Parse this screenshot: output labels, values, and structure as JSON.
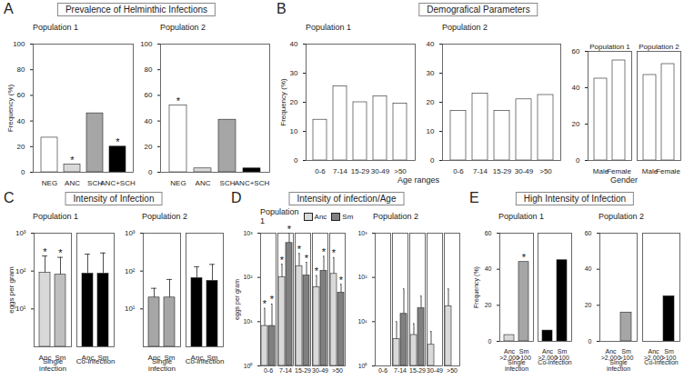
{
  "chart_data": [
    {
      "panel": "A",
      "title": "Prevalence of Helminthic Infections",
      "charts": [
        {
          "type": "bar",
          "subtitle": "Population 1",
          "ylabel": "Frequency (%)",
          "categories": [
            "NEG",
            "ANC",
            "SCH",
            "ANC+SCH"
          ],
          "values": [
            27,
            6,
            46,
            20
          ],
          "colors": [
            "#ffffff",
            "#d9d9d9",
            "#a6a6a6",
            "#000000"
          ],
          "significance": [
            null,
            "*",
            null,
            "*"
          ],
          "ylim": [
            0,
            100
          ],
          "yticks": [
            0,
            20,
            40,
            60,
            80,
            100
          ]
        },
        {
          "type": "bar",
          "subtitle": "Population 2",
          "categories": [
            "NEG",
            "ANC",
            "SCH",
            "ANC+SCH"
          ],
          "values": [
            52,
            3,
            41,
            3
          ],
          "colors": [
            "#ffffff",
            "#d9d9d9",
            "#a6a6a6",
            "#000000"
          ],
          "significance": [
            "*",
            null,
            null,
            null
          ],
          "ylim": [
            0,
            100
          ],
          "yticks": [
            0,
            20,
            40,
            60,
            80,
            100
          ]
        }
      ]
    },
    {
      "panel": "B",
      "title": "Demografical Parameters",
      "xlabel": "Age ranges",
      "charts": [
        {
          "type": "bar",
          "subtitle": "Population 1",
          "ylabel": "Frequency (%)",
          "categories": [
            "0-6",
            "7-14",
            "15-29",
            "30-49",
            ">50"
          ],
          "values": [
            14,
            25.5,
            20,
            22,
            19.5
          ],
          "color": "#ffffff",
          "ylim": [
            0,
            40
          ],
          "yticks": [
            0,
            10,
            20,
            30,
            40
          ]
        },
        {
          "type": "bar",
          "subtitle": "Population 2",
          "categories": [
            "0-6",
            "7-14",
            "15-29",
            "30-49",
            ">50"
          ],
          "values": [
            17,
            23,
            17,
            21,
            22.5
          ],
          "color": "#ffffff",
          "ylim": [
            0,
            40
          ],
          "yticks": [
            0,
            10,
            20,
            30,
            40
          ]
        },
        {
          "type": "bar",
          "xlabel": "Gender",
          "categories": [
            "Male",
            "Female",
            "Male",
            "Female"
          ],
          "groups": [
            "Population 1",
            "Population 1",
            "Population 2",
            "Population 2"
          ],
          "values": [
            45,
            55,
            47,
            53
          ],
          "color": "#ffffff",
          "ylim": [
            0,
            60
          ],
          "yticks": [
            0,
            20,
            40,
            60
          ]
        }
      ]
    },
    {
      "panel": "C",
      "title": "Intensity of Infection",
      "charts": [
        {
          "type": "bar",
          "log": "y",
          "subtitle": "Population 1",
          "ylabel": "eggs per gram",
          "categories": [
            "Anc",
            "Sm",
            "Anc",
            "Sm"
          ],
          "groups": [
            "Single infection",
            "Single infection",
            "Co-infection",
            "Co-infection"
          ],
          "values": [
            90,
            80,
            85,
            85
          ],
          "error_top": [
            250,
            230,
            280,
            300
          ],
          "colors": [
            "#d9d9d9",
            "#bfbfbf",
            "#000000",
            "#000000"
          ],
          "significance": [
            "*",
            "*",
            null,
            null
          ],
          "ylim": [
            1,
            1000
          ],
          "yticks": [
            {
              "value": 10,
              "label": "10¹"
            },
            {
              "value": 100,
              "label": "10²"
            },
            {
              "value": 1000,
              "label": "10³"
            }
          ]
        },
        {
          "type": "bar",
          "log": "y",
          "subtitle": "Population 2",
          "categories": [
            "Anc",
            "Sm",
            "Anc",
            "Sm"
          ],
          "groups": [
            "Single infection",
            "Single infection",
            "Co-infection",
            "Co-infection"
          ],
          "values": [
            20,
            20,
            65,
            55
          ],
          "error_top": [
            35,
            60,
            130,
            150
          ],
          "colors": [
            "#a6a6a6",
            "#a6a6a6",
            "#000000",
            "#000000"
          ],
          "ylim": [
            1,
            1000
          ],
          "yticks": [
            {
              "value": 10,
              "label": "10¹"
            },
            {
              "value": 100,
              "label": "10²"
            },
            {
              "value": 1000,
              "label": "10³"
            }
          ]
        }
      ]
    },
    {
      "panel": "D",
      "title": "Intensity of infection/Age",
      "charts": [
        {
          "type": "bar",
          "log": "y",
          "subtitle": "Population 1",
          "ylabel": "eggs per gram",
          "legend": "top-right",
          "categories": [
            "0-6",
            "7-14",
            "15-29",
            "30-49",
            ">50"
          ],
          "series": [
            {
              "name": "Anc",
              "color": "#d9d9d9",
              "values": [
                8,
                100,
                180,
                60,
                120
              ],
              "error_top": [
                20,
                200,
                350,
                110,
                280
              ],
              "significance": [
                "*",
                "*",
                "*",
                "*",
                "*"
              ]
            },
            {
              "name": "Sm",
              "color": "#808080",
              "values": [
                8,
                600,
                110,
                140,
                45
              ],
              "error_top": [
                25,
                1000,
                220,
                300,
                70
              ],
              "significance": [
                "*",
                "*",
                "*",
                "*",
                "*"
              ]
            }
          ],
          "ylim": [
            1,
            1000
          ],
          "yticks": [
            {
              "value": 1,
              "label": "10⁰"
            },
            {
              "value": 10,
              "label": "10¹"
            },
            {
              "value": 100,
              "label": "10²"
            },
            {
              "value": 1000,
              "label": "10³"
            }
          ]
        },
        {
          "type": "bar",
          "log": "y",
          "subtitle": "Population 2",
          "categories": [
            "0-6",
            "7-14",
            "15-29",
            "30-49",
            ">50"
          ],
          "series": [
            {
              "name": "Anc",
              "color": "#d9d9d9",
              "values": [
                null,
                4,
                5,
                3,
                22
              ],
              "error_top": [
                null,
                10,
                9,
                6,
                55
              ]
            },
            {
              "name": "Sm",
              "color": "#808080",
              "values": [
                null,
                15,
                20,
                null,
                null
              ],
              "error_top": [
                null,
                55,
                38,
                null,
                null
              ]
            }
          ],
          "ylim": [
            1,
            1000
          ],
          "yticks": [
            {
              "value": 1,
              "label": "10⁰"
            },
            {
              "value": 10,
              "label": "10¹"
            },
            {
              "value": 100,
              "label": "10²"
            },
            {
              "value": 1000,
              "label": "10³"
            }
          ]
        }
      ]
    },
    {
      "panel": "E",
      "title": "High Intensity of Infection",
      "charts": [
        {
          "type": "bar",
          "subtitle": "Population 1",
          "ylabel": "Frequency (%)",
          "categories": [
            "Anc >2,000",
            "Sm >100",
            "Anc >2,000",
            "Sm >100"
          ],
          "groups": [
            "Single infection",
            "Single infection",
            "Co-infection",
            "Co-infection"
          ],
          "values": [
            3.5,
            44,
            6,
            45
          ],
          "colors": [
            "#d9d9d9",
            "#a6a6a6",
            "#000000",
            "#000000"
          ],
          "significance": [
            null,
            "*",
            null,
            null
          ],
          "ylim": [
            0,
            60
          ],
          "yticks": [
            0,
            20,
            40,
            60
          ]
        },
        {
          "type": "bar",
          "subtitle": "Population 2",
          "categories": [
            "Anc >2,000",
            "Sm >100",
            "Anc >2,000",
            "Sm >100"
          ],
          "groups": [
            "Single infection",
            "Single infection",
            "Co-infection",
            "Co-infection"
          ],
          "values": [
            0,
            16,
            0,
            25
          ],
          "colors": [
            "#d9d9d9",
            "#a6a6a6",
            "#000000",
            "#000000"
          ],
          "ylim": [
            0,
            60
          ],
          "yticks": [
            0,
            20,
            40,
            60
          ]
        }
      ]
    }
  ]
}
